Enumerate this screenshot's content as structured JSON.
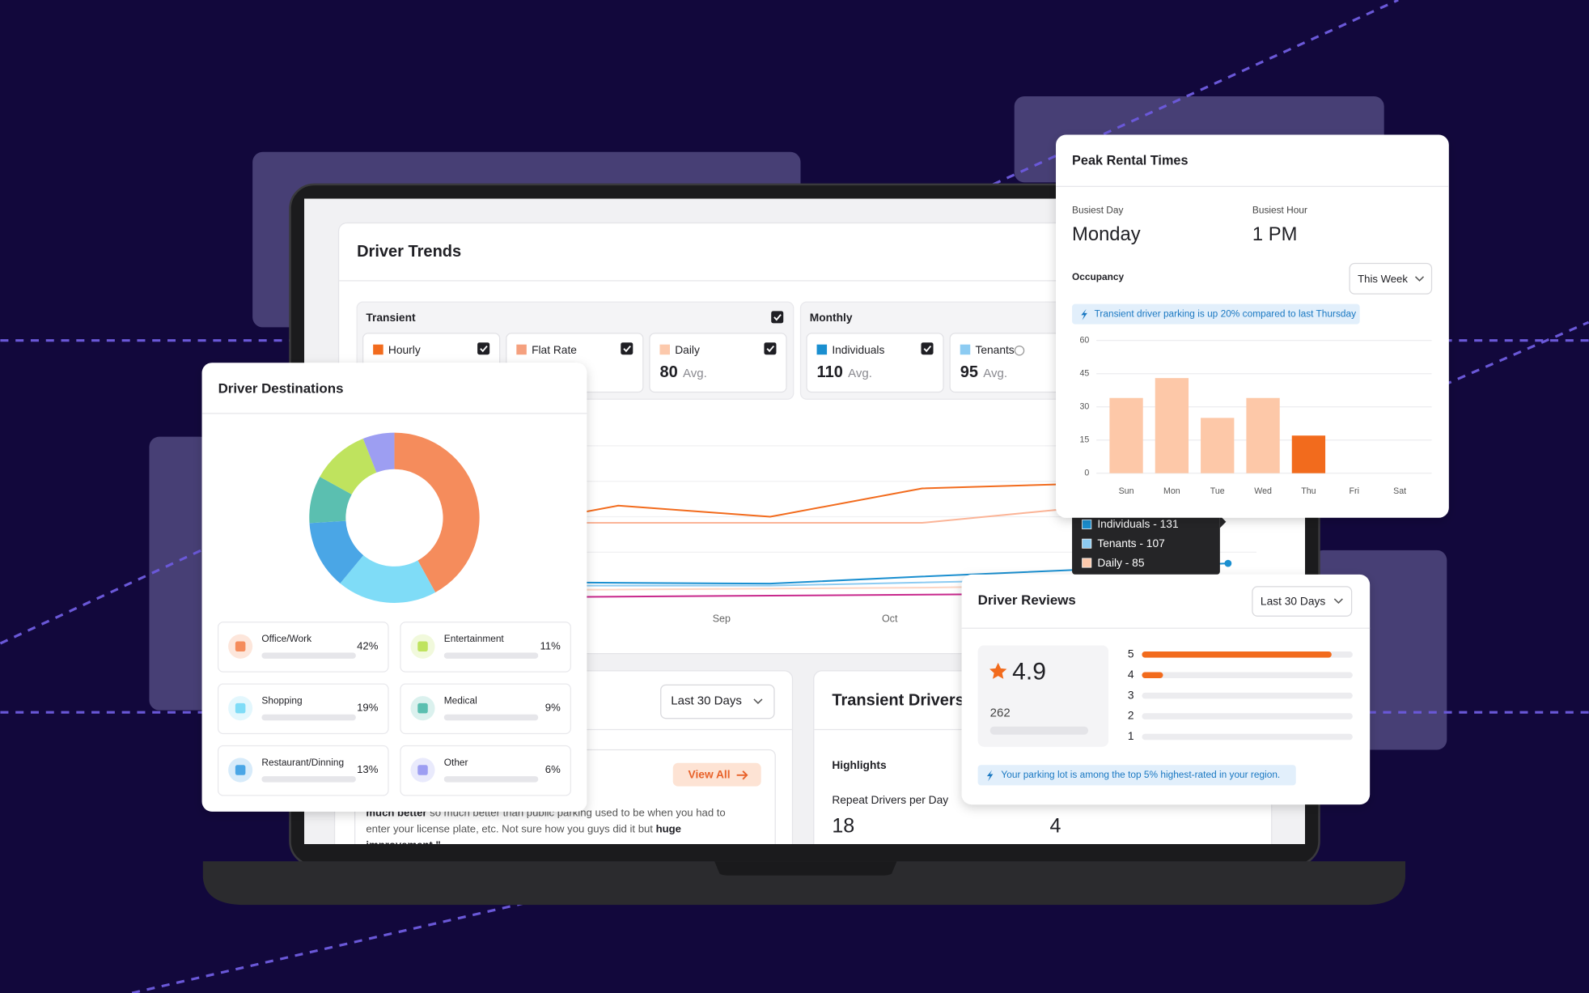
{
  "driver_trends": {
    "title": "Driver Trends",
    "groups": [
      {
        "label": "Transient",
        "checked": true,
        "items": [
          {
            "name": "Hourly",
            "color": "#f26b1d",
            "checked": true
          },
          {
            "name": "Flat Rate",
            "color": "#f5a07e",
            "checked": true
          },
          {
            "name": "Daily",
            "color": "#fcc9ac",
            "checked": true,
            "value": 80,
            "unit": "Avg."
          }
        ]
      },
      {
        "label": "Monthly",
        "items": [
          {
            "name": "Individuals",
            "color": "#1a8fd0",
            "checked": true,
            "value": 110,
            "unit": "Avg."
          },
          {
            "name": "Tenants",
            "color": "#8ccbf2",
            "value": 95,
            "unit": "Avg."
          }
        ]
      }
    ],
    "x_labels": [
      "Sep",
      "Oct"
    ],
    "tooltip": [
      {
        "text": "Individuals - 131",
        "color": "#1a8fd0"
      },
      {
        "text": "Tenants - 107",
        "color": "#8ccbf2"
      },
      {
        "text": "Daily - 85",
        "color": "#fcc9ac"
      }
    ]
  },
  "reviews_panel": {
    "dropdown": "Last 30 Days",
    "button": "View All",
    "lines": [
      [
        {
          "text": "much better",
          "bold": true
        },
        {
          "text": " so much better than public parking used to be when you had to"
        }
      ],
      [
        {
          "text": "enter your license plate, etc. Not sure how you guys did it but "
        },
        {
          "text": "huge",
          "bold": true
        }
      ],
      [
        {
          "text": "improvement.\"",
          "bold": true
        }
      ]
    ]
  },
  "transient_drivers": {
    "title": "Transient Drivers",
    "highlights": "Highlights",
    "metric": "Repeat Drivers per Day",
    "values": [
      18,
      4
    ]
  },
  "peak_rental_times": {
    "title": "Peak Rental Times",
    "busiest_day": {
      "label": "Busiest Day",
      "value": "Monday"
    },
    "busiest_hour": {
      "label": "Busiest Hour",
      "value": "1 PM"
    },
    "occupancy": "Occupancy",
    "dropdown": "This Week",
    "banner": "Transient driver parking is up 20% compared to last Thursday",
    "chart": {
      "type": "bar",
      "categories": [
        "Sun",
        "Mon",
        "Tue",
        "Wed",
        "Thu",
        "Fri",
        "Sat"
      ],
      "values": [
        34,
        43,
        25,
        34,
        17,
        null,
        null
      ],
      "colors": [
        "#fdc8a8",
        "#fdc8a8",
        "#fdc8a8",
        "#fdc8a8",
        "#f26b1d",
        "#fdc8a8",
        "#fdc8a8"
      ],
      "ylim": [
        0,
        60
      ],
      "yticks": [
        0,
        15,
        30,
        45,
        60
      ],
      "grid": true
    }
  },
  "driver_destinations": {
    "title": "Driver Destinations",
    "chart": {
      "type": "pie",
      "donut": true,
      "categories": [
        "Office/Work",
        "Shopping",
        "Restaurant/Dinning",
        "Medical",
        "Entertainment",
        "Other"
      ],
      "values": [
        42,
        19,
        13,
        9,
        11,
        6
      ],
      "value_labels": [
        "42%",
        "19%",
        "13%",
        "9%",
        "11%",
        "6%"
      ],
      "colors": [
        "#f58c5c",
        "#7fdcf7",
        "#4aa6e6",
        "#5bbfb0",
        "#bfe35e",
        "#9d9ef2"
      ]
    }
  },
  "driver_reviews": {
    "title": "Driver Reviews",
    "dropdown": "Last 30 Days",
    "rating": 4.9,
    "count": 262,
    "banner": "Your parking lot is among the top 5% highest-rated in your region.",
    "chart": {
      "type": "bar",
      "orientation": "horizontal",
      "categories": [
        "5",
        "4",
        "3",
        "2",
        "1"
      ],
      "values": [
        90,
        10,
        0,
        0,
        0
      ],
      "xlim": [
        0,
        100
      ],
      "color": "#f26b1d"
    }
  }
}
